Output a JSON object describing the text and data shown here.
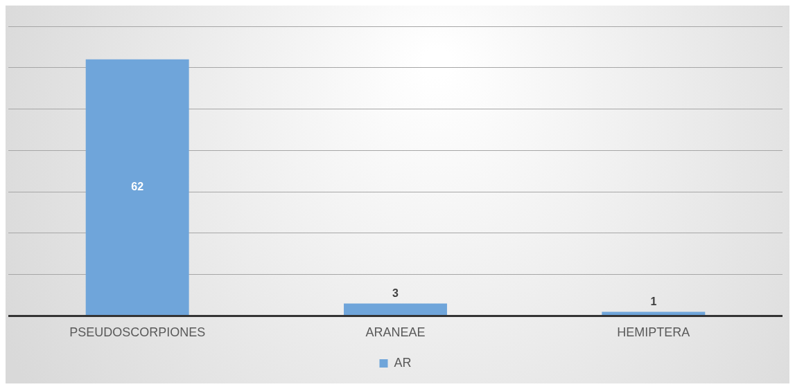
{
  "chart_data": {
    "type": "bar",
    "categories": [
      "PSEUDOSCORPIONES",
      "ARANEAE",
      "HEMIPTERA"
    ],
    "series": [
      {
        "name": "AR",
        "color": "#6fa5da",
        "values": [
          62,
          3,
          1
        ]
      }
    ],
    "ylim": [
      0,
      70
    ],
    "yticks": [
      {
        "value": 0,
        "label": null
      },
      {
        "value": 10,
        "label": null
      },
      {
        "value": 20,
        "label": null
      },
      {
        "value": 30,
        "label": null
      },
      {
        "value": 40,
        "label": null
      },
      {
        "value": 50,
        "label": null
      },
      {
        "value": 60,
        "label": null
      },
      {
        "value": 70,
        "label": null
      }
    ],
    "tick_labels": "x",
    "grid": "y",
    "legend": "bottom",
    "data_labels": true
  }
}
